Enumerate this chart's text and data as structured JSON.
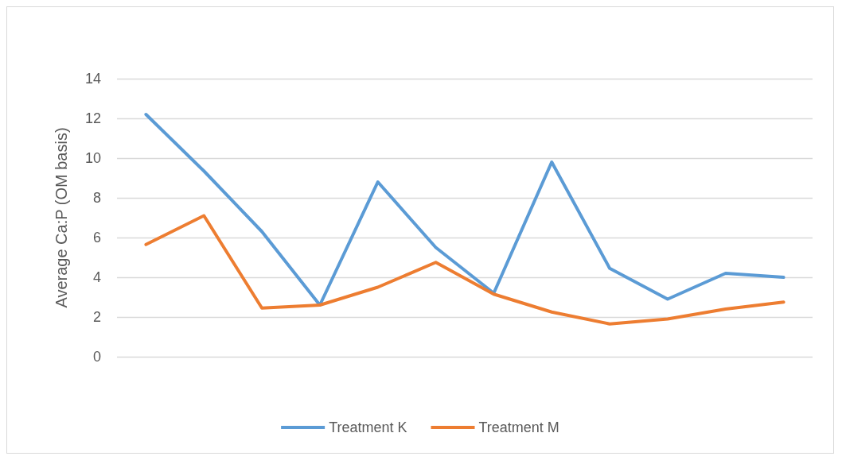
{
  "chart_data": {
    "type": "line",
    "ylabel": "Average Ca:P (OM basis)",
    "categories": [
      null,
      null,
      null,
      null,
      null,
      null,
      null,
      null,
      null,
      null,
      null,
      null
    ],
    "series": [
      {
        "name": "Treatment K",
        "color": "#5b9bd5",
        "values": [
          12.2,
          9.35,
          6.3,
          2.6,
          8.8,
          5.5,
          3.2,
          9.8,
          4.45,
          2.9,
          4.2,
          4.0
        ]
      },
      {
        "name": "Treatment M",
        "color": "#ed7d31",
        "values": [
          5.65,
          7.1,
          2.45,
          2.6,
          3.5,
          4.75,
          3.15,
          2.25,
          1.65,
          1.9,
          2.4,
          2.75
        ]
      }
    ],
    "ylim": [
      0,
      14
    ],
    "yticks": [
      0,
      2,
      4,
      6,
      8,
      10,
      12,
      14
    ],
    "grid": "y",
    "legend": "bottom",
    "marker": "none",
    "line_style": "solid"
  }
}
